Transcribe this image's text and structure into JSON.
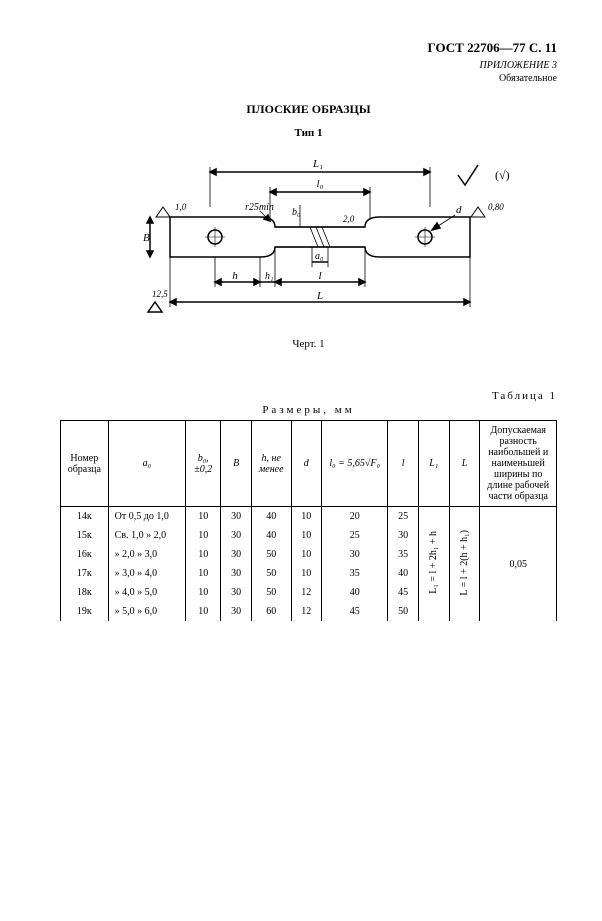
{
  "header": {
    "gost": "ГОСТ 22706—77 С. 11",
    "appendix_line1": "ПРИЛОЖЕНИЕ 3",
    "appendix_line2": "Обязательное"
  },
  "titles": {
    "main": "ПЛОСКИЕ ОБРАЗЦЫ",
    "sub": "Тип 1",
    "drawing_label": "Черт. 1"
  },
  "drawing": {
    "labels": {
      "L1": "L₁",
      "l0": "l₀",
      "b0": "b₀",
      "a0": "a₀",
      "h": "h",
      "h1": "h₁",
      "l": "l",
      "L": "L",
      "B": "B",
      "d": "d",
      "r": "r25min",
      "t1": "1,0",
      "t2": "2,0",
      "t3": "0,80",
      "t4": "12,5",
      "checkmark": "(√)"
    },
    "colors": {
      "stroke": "#000000",
      "fill": "#ffffff",
      "hatch": "#000000"
    }
  },
  "table": {
    "label_right": "Таблица 1",
    "caption": "Размеры, мм",
    "columns": {
      "c0": "Номер\nобразца",
      "c1": "a₀",
      "c2": "b₀,\n±0,2",
      "c3": "B",
      "c4": "h, не\nменее",
      "c5": "d",
      "c6": "l₀ = 5,65√F₀",
      "c7": "l",
      "c8": "L₁",
      "c9": "L",
      "c10": "Допускаемая\nразность\nнаибольшей и\nнаименьшей\nширины по\nдлине рабочей\nчасти образца"
    },
    "formula_L1": "L₁ = l + 2h₁ + h",
    "formula_L": "L = l + 2(h + h₁)",
    "tolerance": "0,05",
    "rows": [
      {
        "id": "14к",
        "a0": "От 0,5 до 1,0",
        "b0": "10",
        "B": "30",
        "h": "40",
        "d": "10",
        "l0": "20",
        "l": "25"
      },
      {
        "id": "15к",
        "a0": "Св. 1,0  »  2,0",
        "b0": "10",
        "B": "30",
        "h": "40",
        "d": "10",
        "l0": "25",
        "l": "30"
      },
      {
        "id": "16к",
        "a0": " »  2,0  »  3,0",
        "b0": "10",
        "B": "30",
        "h": "50",
        "d": "10",
        "l0": "30",
        "l": "35"
      },
      {
        "id": "17к",
        "a0": " »  3,0  »  4,0",
        "b0": "10",
        "B": "30",
        "h": "50",
        "d": "10",
        "l0": "35",
        "l": "40"
      },
      {
        "id": "18к",
        "a0": " »  4,0  »  5,0",
        "b0": "10",
        "B": "30",
        "h": "50",
        "d": "12",
        "l0": "40",
        "l": "45"
      },
      {
        "id": "19к",
        "a0": " »  5,0  »  6,0",
        "b0": "10",
        "B": "30",
        "h": "60",
        "d": "12",
        "l0": "45",
        "l": "50"
      }
    ]
  }
}
